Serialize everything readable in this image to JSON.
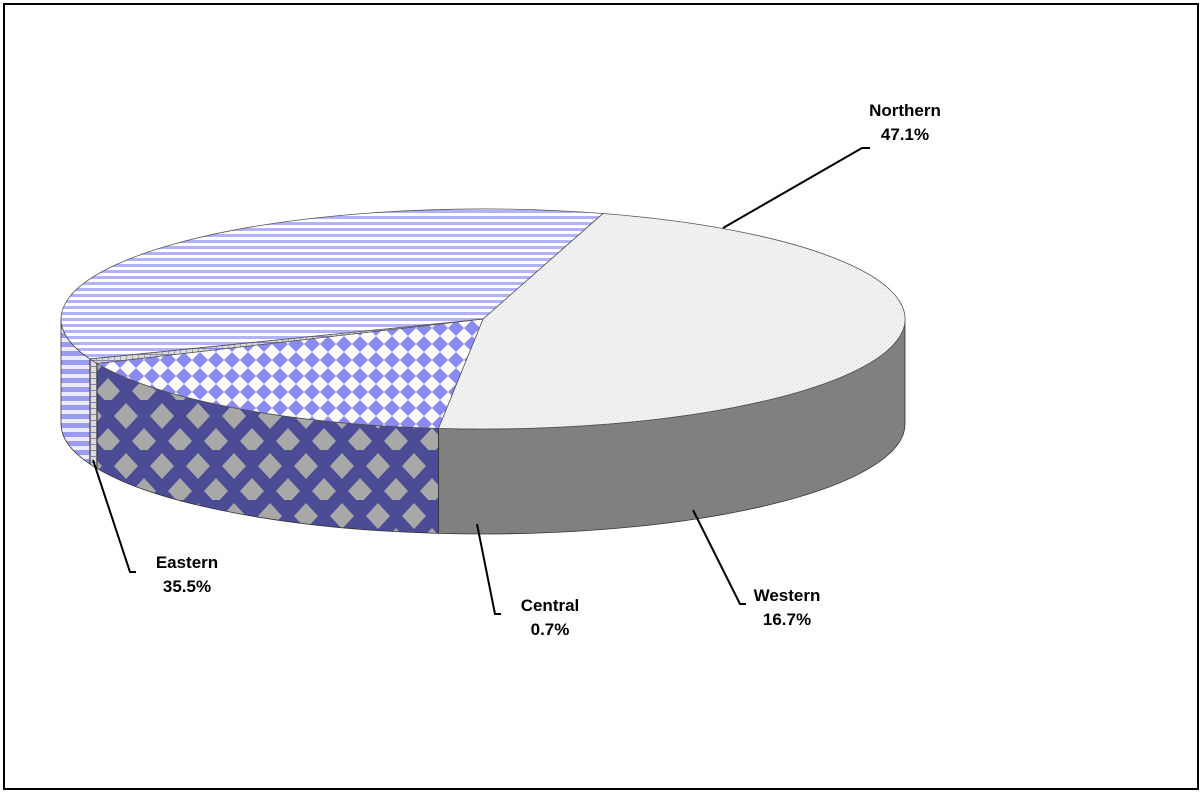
{
  "chart_data": {
    "type": "pie",
    "title": "",
    "slices": [
      {
        "name": "Northern",
        "value": 47.1,
        "label": "47.1%",
        "color": "#f0f0f0",
        "pattern": "fine-dots"
      },
      {
        "name": "Western",
        "value": 16.7,
        "label": "16.7%",
        "color": "#8b8bf0",
        "pattern": "diamonds"
      },
      {
        "name": "Central",
        "value": 0.7,
        "label": "0.7%",
        "color": "#c8c8c8",
        "pattern": "dense-grid"
      },
      {
        "name": "Eastern",
        "value": 35.5,
        "label": "35.5%",
        "color": "#b4b4f8",
        "pattern": "horizontal-stripes"
      }
    ],
    "style": "3d-pie",
    "legend": "none",
    "data_labels": "outside-with-leader-lines"
  }
}
